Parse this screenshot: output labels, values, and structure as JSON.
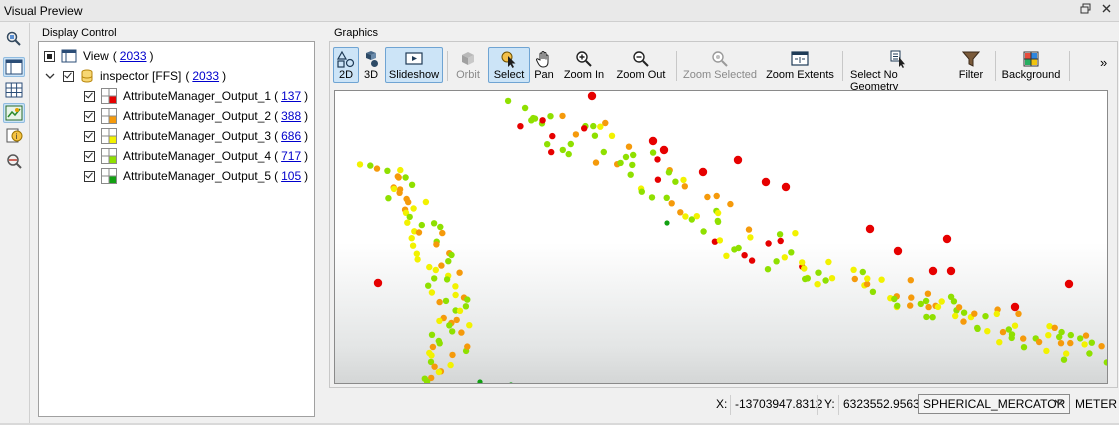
{
  "window": {
    "title": "Visual Preview",
    "restore_icon": "restore-window-icon",
    "close_icon": "close-icon"
  },
  "side_toolbar": {
    "icons": [
      "inspect-icon",
      "table-view-icon",
      "grid-icon",
      "graphics-view-icon",
      "feature-info-icon",
      "search-settings-icon"
    ]
  },
  "display_control": {
    "label": "Display Control",
    "view": {
      "label": "View",
      "count": "2033"
    },
    "dataset": {
      "label": "inspector [FFS]",
      "count": "2033"
    },
    "layers": [
      {
        "name": "AttributeManager_Output_1",
        "count": "137",
        "color": "#e60000"
      },
      {
        "name": "AttributeManager_Output_2",
        "count": "388",
        "color": "#f59a0b"
      },
      {
        "name": "AttributeManager_Output_3",
        "count": "686",
        "color": "#f2f200"
      },
      {
        "name": "AttributeManager_Output_4",
        "count": "717",
        "color": "#8fe000"
      },
      {
        "name": "AttributeManager_Output_5",
        "count": "105",
        "color": "#12a012"
      }
    ]
  },
  "graphics": {
    "label": "Graphics",
    "toolbar": [
      {
        "id": "2d",
        "label": "2D",
        "icon": "2d-shapes-icon",
        "state": "active"
      },
      {
        "id": "3d",
        "label": "3D",
        "icon": "3d-shapes-icon",
        "state": "normal"
      },
      {
        "id": "slideshow",
        "label": "Slideshow",
        "icon": "slideshow-icon",
        "state": "active"
      },
      {
        "id": "orbit",
        "label": "Orbit",
        "icon": "orbit-icon",
        "state": "disabled"
      },
      {
        "id": "select",
        "label": "Select",
        "icon": "select-cursor-icon",
        "state": "active"
      },
      {
        "id": "pan",
        "label": "Pan",
        "icon": "hand-icon",
        "state": "normal"
      },
      {
        "id": "zoom-in",
        "label": "Zoom In",
        "icon": "zoom-in-icon",
        "state": "normal"
      },
      {
        "id": "zoom-out",
        "label": "Zoom Out",
        "icon": "zoom-out-icon",
        "state": "normal"
      },
      {
        "id": "zoom-selected",
        "label": "Zoom Selected",
        "icon": "zoom-selected-icon",
        "state": "disabled"
      },
      {
        "id": "zoom-extents",
        "label": "Zoom Extents",
        "icon": "zoom-extents-icon",
        "state": "normal"
      },
      {
        "id": "select-no-geometry",
        "label": "Select No Geometry",
        "icon": "select-no-geometry-icon",
        "state": "normal"
      },
      {
        "id": "filter",
        "label": "Filter",
        "icon": "filter-icon",
        "state": "normal"
      },
      {
        "id": "background",
        "label": "Background",
        "icon": "background-icon",
        "state": "normal"
      }
    ],
    "overflow": "»"
  },
  "status": {
    "x_label": "X:",
    "x_value": "-13703947.8312",
    "y_label": "Y:",
    "y_value": "6323552.9563",
    "crs": "SPHERICAL_MERCATOR",
    "units": "METER"
  }
}
